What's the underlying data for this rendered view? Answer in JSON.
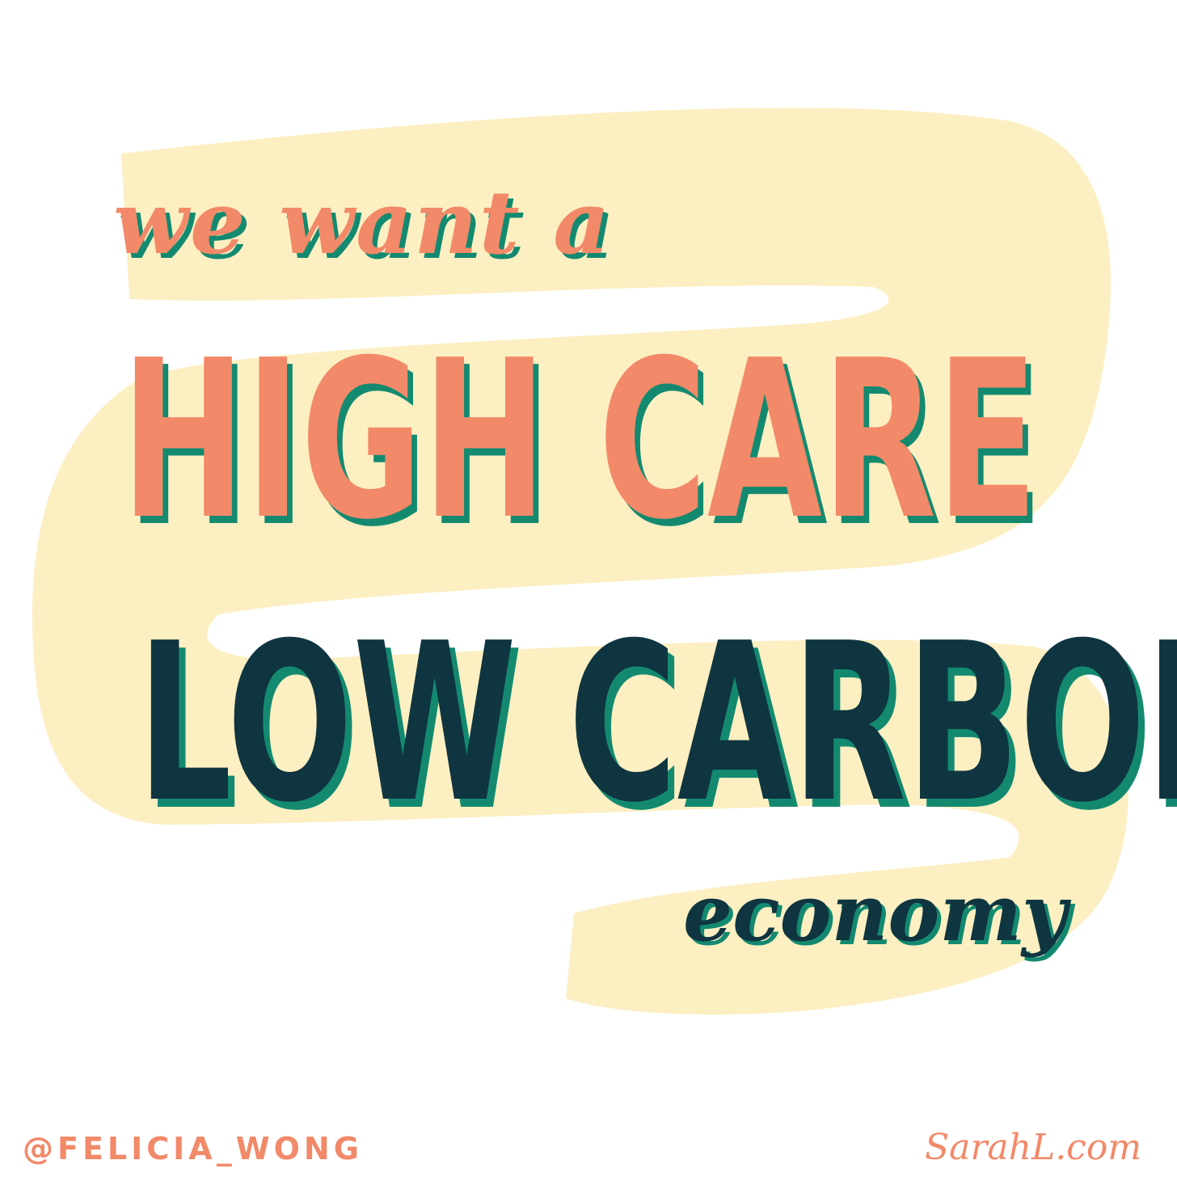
{
  "artwork": {
    "tagline": "we want a",
    "headline_line1": "HIGH CARE",
    "headline_line2": "LOW CARBON",
    "headline_tail": "economy",
    "credit_left": "@FELICIA_WONG",
    "credit_right": "SarahL.com"
  },
  "colors": {
    "background": "#ffffff",
    "swoosh": "#fcefc2",
    "coral": "#f28968",
    "navy": "#0f3540",
    "teal_shadow": "#138a70"
  }
}
